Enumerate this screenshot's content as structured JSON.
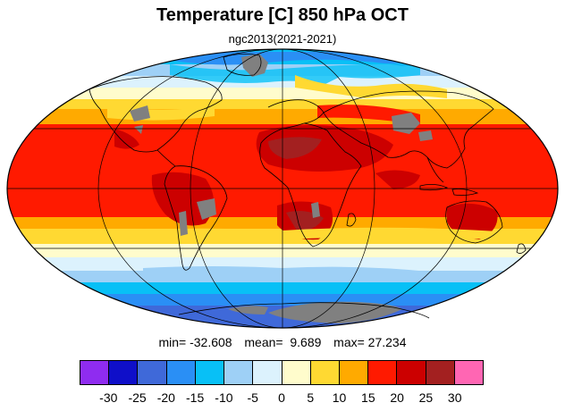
{
  "title": "Temperature [C] 850 hPa OCT",
  "subtitle": "ngc2013(2021-2021)",
  "stats": {
    "min": "min= -32.608",
    "mean": "mean=  9.689",
    "max": "max= 27.234"
  },
  "colorbar": {
    "colors": [
      "#8f2cf0",
      "#0f0fc9",
      "#3f69d9",
      "#2a8ff5",
      "#08c0f6",
      "#9ed0f6",
      "#dcf2fd",
      "#fffccc",
      "#ffd932",
      "#ffaa00",
      "#ff1a00",
      "#cc0000",
      "#a32020",
      "#ff66b3"
    ],
    "ticks": [
      "-30",
      "-25",
      "-20",
      "-15",
      "-10",
      "-5",
      "0",
      "5",
      "10",
      "15",
      "20",
      "25",
      "30"
    ]
  },
  "map": {
    "projection": "mollweide",
    "missing_color": "#808080",
    "coast_color": "#000000",
    "grid_color": "#000000"
  }
}
